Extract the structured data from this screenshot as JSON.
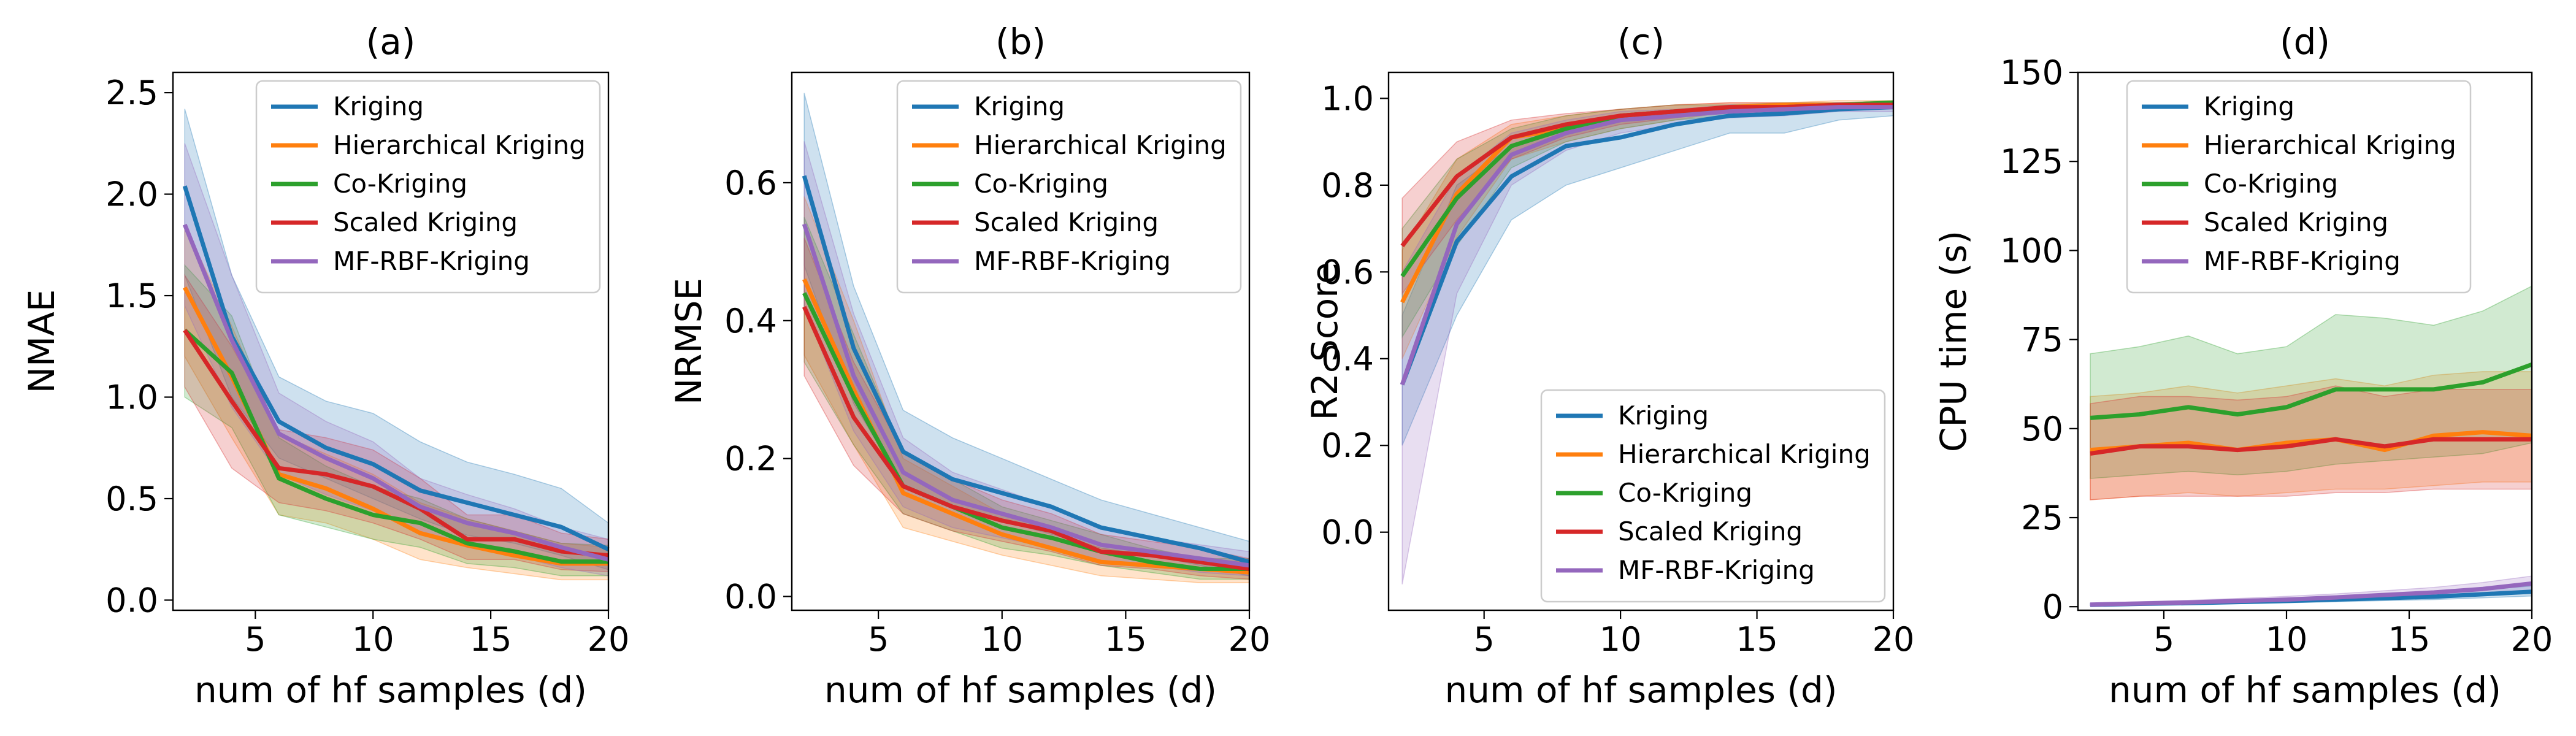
{
  "colors": {
    "Kriging": "#1f77b4",
    "Hierarchical Kriging": "#ff7f0e",
    "Co-Kriging": "#2ca02c",
    "Scaled Kriging": "#d62728",
    "MF-RBF-Kriging": "#9467bd"
  },
  "chart_data": [
    {
      "type": "line",
      "title": "(a)",
      "xlabel": "num of hf samples (d)",
      "ylabel": "NMAE",
      "xlim": [
        1.5,
        20
      ],
      "ylim": [
        -0.05,
        2.6
      ],
      "xticks": [
        5,
        10,
        15,
        20
      ],
      "yticks": [
        0.0,
        0.5,
        1.0,
        1.5,
        2.0,
        2.5
      ],
      "legend": "top-right",
      "x": [
        2,
        4,
        6,
        8,
        10,
        12,
        14,
        16,
        18,
        20
      ],
      "series": [
        {
          "name": "Kriging",
          "values": [
            2.04,
            1.3,
            0.88,
            0.75,
            0.67,
            0.54,
            0.48,
            0.42,
            0.36,
            0.25
          ],
          "lower": [
            1.6,
            1.0,
            0.7,
            0.6,
            0.5,
            0.4,
            0.32,
            0.28,
            0.22,
            0.15
          ],
          "upper": [
            2.42,
            1.6,
            1.1,
            0.98,
            0.92,
            0.78,
            0.68,
            0.62,
            0.55,
            0.38
          ]
        },
        {
          "name": "Hierarchical Kriging",
          "values": [
            1.54,
            1.1,
            0.62,
            0.55,
            0.45,
            0.33,
            0.27,
            0.22,
            0.18,
            0.18
          ],
          "lower": [
            1.2,
            0.8,
            0.42,
            0.38,
            0.3,
            0.2,
            0.16,
            0.13,
            0.1,
            0.1
          ],
          "upper": [
            1.85,
            1.35,
            0.82,
            0.72,
            0.62,
            0.48,
            0.4,
            0.34,
            0.28,
            0.26
          ]
        },
        {
          "name": "Co-Kriging",
          "values": [
            1.33,
            1.12,
            0.6,
            0.5,
            0.42,
            0.38,
            0.28,
            0.24,
            0.19,
            0.19
          ],
          "lower": [
            1.0,
            0.85,
            0.42,
            0.36,
            0.3,
            0.26,
            0.18,
            0.16,
            0.12,
            0.12
          ],
          "upper": [
            1.65,
            1.4,
            0.8,
            0.66,
            0.56,
            0.5,
            0.4,
            0.34,
            0.28,
            0.27
          ]
        },
        {
          "name": "Scaled Kriging",
          "values": [
            1.33,
            0.98,
            0.65,
            0.62,
            0.56,
            0.45,
            0.3,
            0.3,
            0.24,
            0.22
          ],
          "lower": [
            1.05,
            0.65,
            0.48,
            0.44,
            0.38,
            0.3,
            0.2,
            0.2,
            0.15,
            0.14
          ],
          "upper": [
            1.6,
            1.25,
            0.84,
            0.8,
            0.74,
            0.6,
            0.42,
            0.42,
            0.33,
            0.3
          ]
        },
        {
          "name": "MF-RBF-Kriging",
          "values": [
            1.85,
            1.28,
            0.82,
            0.7,
            0.6,
            0.46,
            0.38,
            0.33,
            0.26,
            0.2
          ],
          "lower": [
            1.45,
            0.95,
            0.62,
            0.52,
            0.44,
            0.33,
            0.26,
            0.22,
            0.16,
            0.12
          ],
          "upper": [
            2.25,
            1.6,
            1.02,
            0.88,
            0.78,
            0.6,
            0.52,
            0.45,
            0.36,
            0.3
          ]
        }
      ]
    },
    {
      "type": "line",
      "title": "(b)",
      "xlabel": "num of hf samples (d)",
      "ylabel": "NRMSE",
      "xlim": [
        1.5,
        20
      ],
      "ylim": [
        -0.02,
        0.76
      ],
      "xticks": [
        5,
        10,
        15,
        20
      ],
      "yticks": [
        0.0,
        0.2,
        0.4,
        0.6
      ],
      "legend": "top-right",
      "x": [
        2,
        4,
        6,
        8,
        10,
        12,
        14,
        16,
        18,
        20
      ],
      "series": [
        {
          "name": "Kriging",
          "values": [
            0.61,
            0.36,
            0.21,
            0.17,
            0.15,
            0.13,
            0.1,
            0.085,
            0.07,
            0.05
          ],
          "lower": [
            0.48,
            0.28,
            0.16,
            0.13,
            0.11,
            0.09,
            0.07,
            0.06,
            0.045,
            0.03
          ],
          "upper": [
            0.73,
            0.45,
            0.27,
            0.23,
            0.2,
            0.17,
            0.14,
            0.12,
            0.1,
            0.08
          ]
        },
        {
          "name": "Hierarchical Kriging",
          "values": [
            0.46,
            0.3,
            0.15,
            0.12,
            0.09,
            0.07,
            0.05,
            0.045,
            0.04,
            0.035
          ],
          "lower": [
            0.35,
            0.22,
            0.1,
            0.08,
            0.06,
            0.045,
            0.03,
            0.025,
            0.02,
            0.02
          ],
          "upper": [
            0.58,
            0.4,
            0.2,
            0.16,
            0.12,
            0.095,
            0.07,
            0.06,
            0.055,
            0.05
          ]
        },
        {
          "name": "Co-Kriging",
          "values": [
            0.44,
            0.29,
            0.16,
            0.13,
            0.1,
            0.085,
            0.065,
            0.05,
            0.04,
            0.04
          ],
          "lower": [
            0.34,
            0.22,
            0.12,
            0.095,
            0.07,
            0.06,
            0.045,
            0.035,
            0.025,
            0.025
          ],
          "upper": [
            0.55,
            0.38,
            0.21,
            0.17,
            0.13,
            0.11,
            0.09,
            0.07,
            0.055,
            0.055
          ]
        },
        {
          "name": "Scaled Kriging",
          "values": [
            0.42,
            0.26,
            0.16,
            0.13,
            0.11,
            0.095,
            0.065,
            0.06,
            0.05,
            0.04
          ],
          "lower": [
            0.32,
            0.19,
            0.12,
            0.095,
            0.08,
            0.065,
            0.045,
            0.04,
            0.03,
            0.025
          ],
          "upper": [
            0.52,
            0.34,
            0.21,
            0.17,
            0.14,
            0.12,
            0.09,
            0.08,
            0.07,
            0.055
          ]
        },
        {
          "name": "MF-RBF-Kriging",
          "values": [
            0.54,
            0.32,
            0.18,
            0.14,
            0.12,
            0.1,
            0.075,
            0.065,
            0.055,
            0.045
          ],
          "lower": [
            0.42,
            0.24,
            0.13,
            0.1,
            0.085,
            0.07,
            0.05,
            0.045,
            0.035,
            0.03
          ],
          "upper": [
            0.66,
            0.41,
            0.23,
            0.18,
            0.155,
            0.13,
            0.1,
            0.085,
            0.075,
            0.065
          ]
        }
      ]
    },
    {
      "type": "line",
      "title": "(c)",
      "xlabel": "num of hf samples (d)",
      "ylabel": "R2 Score",
      "xlim": [
        1.5,
        20
      ],
      "ylim": [
        -0.18,
        1.06
      ],
      "xticks": [
        5,
        10,
        15,
        20
      ],
      "yticks": [
        0.0,
        0.2,
        0.4,
        0.6,
        0.8,
        1.0
      ],
      "legend": "lower-right",
      "x": [
        2,
        4,
        6,
        8,
        10,
        12,
        14,
        16,
        18,
        20
      ],
      "series": [
        {
          "name": "Kriging",
          "values": [
            0.34,
            0.67,
            0.82,
            0.89,
            0.91,
            0.94,
            0.96,
            0.965,
            0.975,
            0.98
          ],
          "lower": [
            0.2,
            0.5,
            0.72,
            0.8,
            0.84,
            0.88,
            0.92,
            0.92,
            0.95,
            0.96
          ],
          "upper": [
            0.5,
            0.8,
            0.89,
            0.94,
            0.95,
            0.97,
            0.98,
            0.985,
            0.99,
            0.99
          ]
        },
        {
          "name": "Hierarchical Kriging",
          "values": [
            0.53,
            0.78,
            0.91,
            0.93,
            0.96,
            0.97,
            0.98,
            0.985,
            0.985,
            0.99
          ],
          "lower": [
            0.4,
            0.68,
            0.86,
            0.9,
            0.93,
            0.95,
            0.97,
            0.975,
            0.98,
            0.98
          ],
          "upper": [
            0.65,
            0.86,
            0.94,
            0.96,
            0.975,
            0.985,
            0.99,
            0.99,
            0.995,
            0.995
          ]
        },
        {
          "name": "Co-Kriging",
          "values": [
            0.59,
            0.77,
            0.89,
            0.93,
            0.96,
            0.97,
            0.975,
            0.98,
            0.985,
            0.99
          ],
          "lower": [
            0.45,
            0.66,
            0.84,
            0.9,
            0.93,
            0.95,
            0.96,
            0.97,
            0.975,
            0.98
          ],
          "upper": [
            0.7,
            0.86,
            0.93,
            0.96,
            0.975,
            0.985,
            0.985,
            0.99,
            0.99,
            0.995
          ]
        },
        {
          "name": "Scaled Kriging",
          "values": [
            0.66,
            0.82,
            0.91,
            0.94,
            0.96,
            0.97,
            0.98,
            0.98,
            0.985,
            0.985
          ],
          "lower": [
            0.55,
            0.72,
            0.86,
            0.91,
            0.94,
            0.955,
            0.97,
            0.97,
            0.975,
            0.98
          ],
          "upper": [
            0.77,
            0.9,
            0.95,
            0.965,
            0.975,
            0.985,
            0.99,
            0.99,
            0.99,
            0.99
          ]
        },
        {
          "name": "MF-RBF-Kriging",
          "values": [
            0.34,
            0.71,
            0.87,
            0.92,
            0.95,
            0.96,
            0.97,
            0.975,
            0.98,
            0.98
          ],
          "lower": [
            -0.12,
            0.55,
            0.8,
            0.88,
            0.92,
            0.94,
            0.955,
            0.96,
            0.97,
            0.97
          ],
          "upper": [
            0.6,
            0.82,
            0.92,
            0.95,
            0.97,
            0.975,
            0.985,
            0.985,
            0.99,
            0.99
          ]
        }
      ]
    },
    {
      "type": "line",
      "title": "(d)",
      "xlabel": "num of hf samples (d)",
      "ylabel": "CPU time (s)",
      "xlim": [
        1.5,
        20
      ],
      "ylim": [
        -1,
        150
      ],
      "xticks": [
        5,
        10,
        15,
        20
      ],
      "yticks": [
        0,
        25,
        50,
        75,
        100,
        125,
        150
      ],
      "legend": "top-center",
      "x": [
        2,
        4,
        6,
        8,
        10,
        12,
        14,
        16,
        18,
        20
      ],
      "series": [
        {
          "name": "Kriging",
          "values": [
            0.5,
            0.8,
            1.0,
            1.3,
            1.6,
            2.0,
            2.4,
            2.8,
            3.5,
            4.2
          ],
          "lower": [
            0.3,
            0.5,
            0.7,
            0.9,
            1.1,
            1.4,
            1.7,
            2.0,
            2.5,
            3.0
          ],
          "upper": [
            0.8,
            1.1,
            1.4,
            1.8,
            2.2,
            2.7,
            3.2,
            3.8,
            4.8,
            5.8
          ]
        },
        {
          "name": "Hierarchical Kriging",
          "values": [
            44,
            45,
            46,
            44,
            46,
            47,
            44,
            48,
            49,
            48
          ],
          "lower": [
            30,
            31,
            32,
            31,
            32,
            33,
            33,
            34,
            35,
            35
          ],
          "upper": [
            59,
            60,
            62,
            60,
            62,
            64,
            62,
            65,
            66,
            66
          ]
        },
        {
          "name": "Co-Kriging",
          "values": [
            53,
            54,
            56,
            54,
            56,
            61,
            61,
            61,
            63,
            68
          ],
          "lower": [
            36,
            37,
            38,
            37,
            38,
            40,
            41,
            42,
            43,
            46
          ],
          "upper": [
            71,
            73,
            76,
            71,
            73,
            82,
            81,
            79,
            83,
            90
          ]
        },
        {
          "name": "Scaled Kriging",
          "values": [
            43,
            45,
            45,
            44,
            45,
            47,
            45,
            47,
            47,
            47
          ],
          "lower": [
            30,
            31,
            31,
            31,
            31,
            32,
            32,
            33,
            33,
            33
          ],
          "upper": [
            57,
            59,
            59,
            58,
            59,
            62,
            59,
            61,
            61,
            61
          ]
        },
        {
          "name": "MF-RBF-Kriging",
          "values": [
            0.6,
            0.9,
            1.2,
            1.6,
            2.0,
            2.6,
            3.3,
            4.0,
            5.0,
            6.5
          ],
          "lower": [
            0.3,
            0.5,
            0.7,
            1.0,
            1.3,
            1.7,
            2.2,
            2.7,
            3.4,
            4.5
          ],
          "upper": [
            1.0,
            1.4,
            1.8,
            2.3,
            2.9,
            3.6,
            4.5,
            5.4,
            6.8,
            8.6
          ]
        }
      ]
    }
  ]
}
